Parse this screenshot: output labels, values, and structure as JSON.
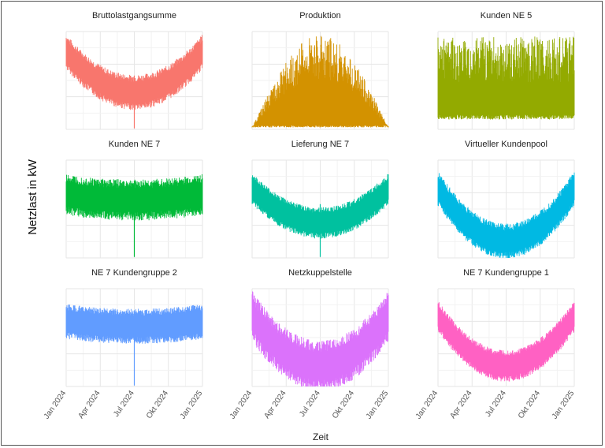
{
  "chart_data": {
    "type": "line",
    "layout": "facet-grid-3x3",
    "ylabel": "Netzlast in kW",
    "xlabel": "Zeit",
    "x_ticks": [
      "Jan 2024",
      "Apr 2024",
      "Jul 2024",
      "Okt 2024",
      "Jan 2025"
    ],
    "x_range": [
      "2024-01-01",
      "2025-01-01"
    ],
    "grid": true,
    "legend": "none",
    "panels": [
      {
        "title": "Bruttolastgangsumme",
        "color": "#F8766D",
        "pattern": "u-shape",
        "max": 0.95,
        "min": 0.3,
        "noise": 0.12,
        "spike_month": 6
      },
      {
        "title": "Produktion",
        "color": "#D39200",
        "pattern": "bell",
        "max": 0.97,
        "min": 0.02,
        "noise": 0.2,
        "spike_month": -1
      },
      {
        "title": "Kunden NE 5",
        "color": "#93AA00",
        "pattern": "flat-high",
        "max": 0.95,
        "min": 0.1,
        "noise": 0.35,
        "spike_month": -1
      },
      {
        "title": "Kunden NE 7",
        "color": "#00BA38",
        "pattern": "flat-mid",
        "max": 0.9,
        "min": 0.35,
        "noise": 0.15,
        "spike_month": 6
      },
      {
        "title": "Lieferung NE 7",
        "color": "#00C19F",
        "pattern": "u-shape",
        "max": 0.85,
        "min": 0.3,
        "noise": 0.1,
        "spike_month": 6
      },
      {
        "title": "Virtueller Kundenpool",
        "color": "#00B9E3",
        "pattern": "u-shape",
        "max": 0.9,
        "min": 0.05,
        "noise": 0.12,
        "spike_month": -1
      },
      {
        "title": "NE 7 Kundengruppe 2",
        "color": "#619CFF",
        "pattern": "flat-mid",
        "max": 0.9,
        "min": 0.4,
        "noise": 0.12,
        "spike_month": 6
      },
      {
        "title": "Netzkuppelstelle",
        "color": "#DB72FB",
        "pattern": "u-shape",
        "max": 0.9,
        "min": 0.1,
        "noise": 0.2,
        "spike_month": -1
      },
      {
        "title": "NE 7 Kundengruppe 1",
        "color": "#FF61C3",
        "pattern": "u-shape",
        "max": 0.9,
        "min": 0.1,
        "noise": 0.1,
        "spike_month": -1
      }
    ]
  }
}
